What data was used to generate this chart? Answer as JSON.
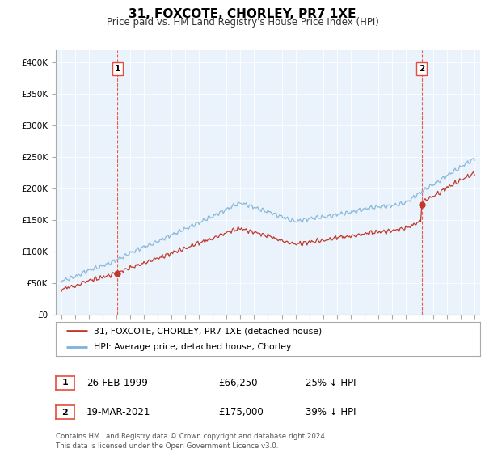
{
  "title": "31, FOXCOTE, CHORLEY, PR7 1XE",
  "subtitle": "Price paid vs. HM Land Registry's House Price Index (HPI)",
  "ylim": [
    0,
    420000
  ],
  "yticks": [
    0,
    50000,
    100000,
    150000,
    200000,
    250000,
    300000,
    350000,
    400000
  ],
  "hpi_color": "#7EB3D8",
  "price_color": "#C0392B",
  "dashed_color": "#E74C3C",
  "marker1_year_idx": 49,
  "marker2_year_idx": 314,
  "marker1_price": 66250,
  "marker2_price": 175000,
  "legend_label_price": "31, FOXCOTE, CHORLEY, PR7 1XE (detached house)",
  "legend_label_hpi": "HPI: Average price, detached house, Chorley",
  "table_row1": [
    "1",
    "26-FEB-1999",
    "£66,250",
    "25% ↓ HPI"
  ],
  "table_row2": [
    "2",
    "19-MAR-2021",
    "£175,000",
    "39% ↓ HPI"
  ],
  "footnote": "Contains HM Land Registry data © Crown copyright and database right 2024.\nThis data is licensed under the Open Government Licence v3.0.",
  "background_color": "#FFFFFF",
  "plot_bg_color": "#EAF2FB",
  "grid_color": "#FFFFFF"
}
